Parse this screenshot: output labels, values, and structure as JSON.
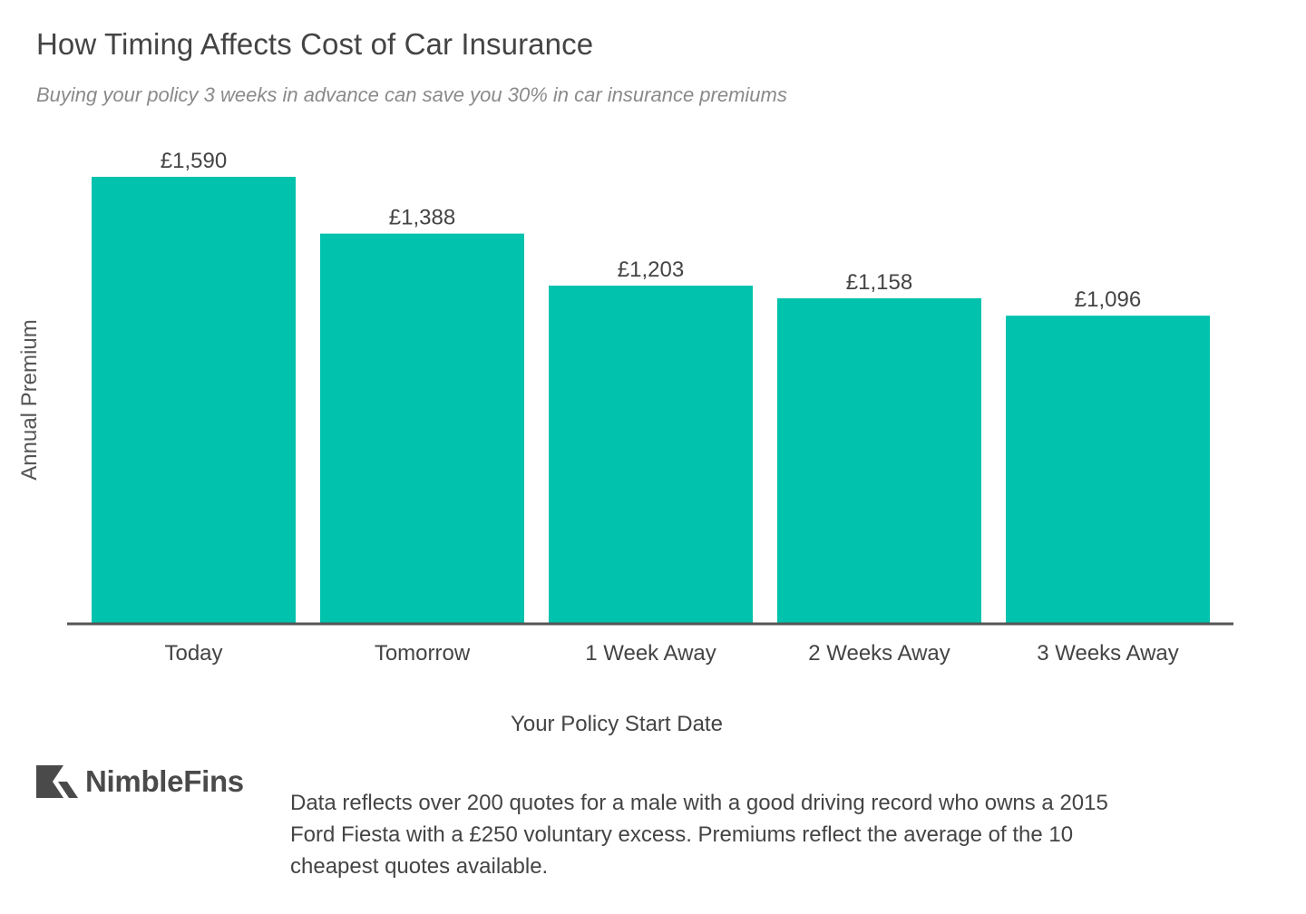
{
  "title": "How Timing Affects Cost of Car Insurance",
  "subtitle": "Buying your policy 3 weeks in advance can save you 30% in car insurance premiums",
  "chart_data": {
    "type": "bar",
    "title": "How Timing Affects Cost of Car Insurance",
    "subtitle": "Buying your policy 3 weeks in advance can save you 30% in car insurance premiums",
    "xlabel": "Your Policy Start Date",
    "ylabel": "Annual Premium",
    "categories": [
      "Today",
      "Tomorrow",
      "1 Week Away",
      "2 Weeks Away",
      "3 Weeks Away"
    ],
    "values": [
      1590,
      1388,
      1203,
      1158,
      1096
    ],
    "value_labels": [
      "£1,590",
      "£1,388",
      "£1,203",
      "£1,158",
      "£1,096"
    ],
    "ylim": [
      0,
      1700
    ],
    "grid": false,
    "legend": "none",
    "bar_color": "#00c2ad",
    "axis_color": "#555555"
  },
  "logo": {
    "text": "NimbleFins",
    "icon": "nimblefins-chevron-icon"
  },
  "footnote": {
    "lines": [
      "Data reflects over 200 quotes for a male with a good driving record who owns a 2015",
      "Ford Fiesta with a £250 voluntary excess. Premiums reflect the average of the 10",
      "cheapest quotes available."
    ]
  }
}
